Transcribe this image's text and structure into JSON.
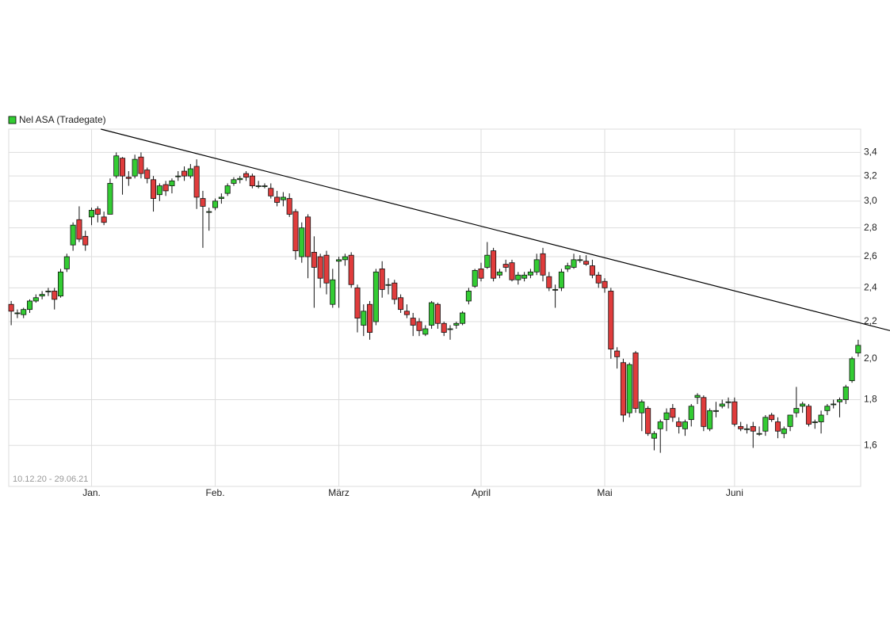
{
  "chart_data": {
    "type": "candlestick",
    "legend_label": "Nel ASA (Tradegate)",
    "annotation": "10.12.20 - 29.06.21",
    "log_scale": true,
    "grid": true,
    "legend_position": "top-left",
    "up_color": "#33cc33",
    "down_color": "#e03c3c",
    "xlim": [
      -0.4,
      137.4
    ],
    "xticks": [
      {
        "value": 13,
        "label": "Jan."
      },
      {
        "value": 33,
        "label": "Feb."
      },
      {
        "value": 53,
        "label": "März"
      },
      {
        "value": 76,
        "label": "April"
      },
      {
        "value": 96,
        "label": "Mai"
      },
      {
        "value": 117,
        "label": "Juni"
      }
    ],
    "ylim": [
      1.44,
      3.61
    ],
    "yticks": [
      {
        "value": 1.6,
        "label": "1,6"
      },
      {
        "value": 1.8,
        "label": "1,8"
      },
      {
        "value": 2.0,
        "label": "2,0"
      },
      {
        "value": 2.2,
        "label": "2,2"
      },
      {
        "value": 2.4,
        "label": "2,4"
      },
      {
        "value": 2.6,
        "label": "2,6"
      },
      {
        "value": 2.8,
        "label": "2,8"
      },
      {
        "value": 3.0,
        "label": "3,0"
      },
      {
        "value": 3.2,
        "label": "3,2"
      },
      {
        "value": 3.4,
        "label": "3,4"
      }
    ],
    "trendline": {
      "x": [
        14.5,
        142.2
      ],
      "y": [
        3.61,
        2.15
      ]
    },
    "open": [
      2.3,
      2.25,
      2.24,
      2.27,
      2.32,
      2.35,
      2.38,
      2.38,
      2.35,
      2.52,
      2.68,
      2.86,
      2.74,
      2.88,
      2.94,
      2.88,
      2.9,
      3.2,
      3.35,
      3.19,
      3.2,
      3.36,
      3.25,
      3.17,
      3.05,
      3.13,
      3.12,
      3.2,
      3.24,
      3.2,
      3.28,
      3.02,
      2.92,
      2.95,
      3.02,
      3.06,
      3.14,
      3.17,
      3.22,
      3.2,
      3.12,
      3.12,
      3.1,
      3.03,
      3.01,
      3.02,
      2.92,
      2.6,
      2.88,
      2.63,
      2.6,
      2.61,
      2.3,
      2.57,
      2.58,
      2.61,
      2.4,
      2.18,
      2.3,
      2.2,
      2.52,
      2.42,
      2.43,
      2.34,
      2.26,
      2.22,
      2.2,
      2.13,
      2.18,
      2.3,
      2.19,
      2.16,
      2.18,
      2.19,
      2.32,
      2.41,
      2.52,
      2.53,
      2.64,
      2.48,
      2.55,
      2.56,
      2.45,
      2.46,
      2.48,
      2.5,
      2.62,
      2.47,
      2.39,
      2.4,
      2.52,
      2.53,
      2.58,
      2.57,
      2.54,
      2.48,
      2.44,
      2.38,
      2.04,
      1.98,
      1.74,
      2.03,
      1.74,
      1.76,
      1.63,
      1.67,
      1.71,
      1.76,
      1.7,
      1.67,
      1.71,
      1.81,
      1.81,
      1.67,
      1.75,
      1.77,
      1.79,
      1.79,
      1.68,
      1.67,
      1.68,
      1.65,
      1.66,
      1.73,
      1.7,
      1.65,
      1.68,
      1.74,
      1.77,
      1.77,
      1.7,
      1.7,
      1.75,
      1.78,
      1.79,
      1.8,
      1.89,
      2.03
    ],
    "high": [
      2.32,
      2.27,
      2.28,
      2.33,
      2.36,
      2.38,
      2.4,
      2.4,
      2.52,
      2.62,
      2.84,
      2.96,
      2.78,
      2.95,
      2.96,
      2.92,
      3.18,
      3.4,
      3.36,
      3.24,
      3.38,
      3.4,
      3.27,
      3.2,
      3.14,
      3.16,
      3.18,
      3.24,
      3.28,
      3.3,
      3.34,
      3.08,
      2.95,
      3.02,
      3.06,
      3.14,
      3.19,
      3.2,
      3.24,
      3.22,
      3.16,
      3.14,
      3.14,
      3.08,
      3.07,
      3.06,
      2.94,
      2.84,
      2.9,
      2.74,
      2.62,
      2.64,
      2.52,
      2.6,
      2.62,
      2.63,
      2.42,
      2.3,
      2.32,
      2.52,
      2.57,
      2.46,
      2.45,
      2.36,
      2.3,
      2.25,
      2.22,
      2.18,
      2.32,
      2.31,
      2.2,
      2.18,
      2.2,
      2.26,
      2.4,
      2.52,
      2.56,
      2.7,
      2.66,
      2.52,
      2.58,
      2.58,
      2.5,
      2.5,
      2.52,
      2.62,
      2.66,
      2.5,
      2.42,
      2.52,
      2.56,
      2.62,
      2.61,
      2.61,
      2.58,
      2.5,
      2.46,
      2.4,
      2.06,
      2.0,
      1.98,
      2.04,
      1.8,
      1.77,
      1.66,
      1.71,
      1.76,
      1.78,
      1.72,
      1.71,
      1.78,
      1.83,
      1.82,
      1.76,
      1.79,
      1.8,
      1.81,
      1.81,
      1.7,
      1.69,
      1.7,
      1.68,
      1.73,
      1.74,
      1.72,
      1.68,
      1.73,
      1.86,
      1.79,
      1.78,
      1.71,
      1.75,
      1.78,
      1.8,
      1.81,
      1.87,
      2.01,
      2.1
    ],
    "low": [
      2.18,
      2.22,
      2.22,
      2.25,
      2.31,
      2.33,
      2.35,
      2.27,
      2.34,
      2.5,
      2.64,
      2.7,
      2.64,
      2.82,
      2.84,
      2.82,
      2.9,
      3.18,
      3.05,
      3.12,
      3.18,
      3.18,
      3.14,
      2.92,
      3.0,
      3.04,
      3.06,
      3.16,
      3.16,
      3.18,
      2.94,
      2.66,
      2.78,
      2.93,
      2.98,
      3.04,
      3.12,
      3.14,
      3.16,
      3.1,
      3.1,
      3.1,
      3.02,
      2.96,
      2.96,
      2.88,
      2.58,
      2.56,
      2.46,
      2.28,
      2.4,
      2.36,
      2.28,
      2.28,
      2.54,
      2.4,
      2.14,
      2.12,
      2.1,
      2.18,
      2.34,
      2.36,
      2.3,
      2.25,
      2.22,
      2.12,
      2.12,
      2.12,
      2.16,
      2.16,
      2.12,
      2.1,
      2.16,
      2.18,
      2.3,
      2.4,
      2.44,
      2.52,
      2.44,
      2.46,
      2.5,
      2.44,
      2.42,
      2.44,
      2.46,
      2.48,
      2.44,
      2.38,
      2.28,
      2.38,
      2.5,
      2.52,
      2.56,
      2.54,
      2.46,
      2.4,
      2.37,
      2.0,
      1.95,
      1.7,
      1.72,
      1.74,
      1.66,
      1.64,
      1.58,
      1.57,
      1.66,
      1.7,
      1.65,
      1.64,
      1.68,
      1.78,
      1.66,
      1.66,
      1.72,
      1.76,
      1.76,
      1.68,
      1.66,
      1.65,
      1.59,
      1.64,
      1.64,
      1.7,
      1.63,
      1.63,
      1.66,
      1.72,
      1.74,
      1.68,
      1.67,
      1.65,
      1.73,
      1.76,
      1.72,
      1.78,
      1.88,
      2.01
    ],
    "close": [
      2.26,
      2.25,
      2.27,
      2.32,
      2.34,
      2.36,
      2.38,
      2.33,
      2.5,
      2.6,
      2.82,
      2.72,
      2.68,
      2.93,
      2.9,
      2.84,
      3.14,
      3.37,
      3.2,
      3.18,
      3.34,
      3.22,
      3.18,
      3.02,
      3.12,
      3.08,
      3.16,
      3.2,
      3.2,
      3.26,
      3.03,
      2.96,
      2.92,
      3.0,
      3.03,
      3.12,
      3.17,
      3.18,
      3.19,
      3.12,
      3.12,
      3.12,
      3.04,
      2.99,
      3.03,
      2.9,
      2.64,
      2.8,
      2.6,
      2.53,
      2.46,
      2.43,
      2.45,
      2.58,
      2.6,
      2.42,
      2.22,
      2.26,
      2.14,
      2.5,
      2.39,
      2.42,
      2.33,
      2.27,
      2.24,
      2.18,
      2.15,
      2.16,
      2.31,
      2.19,
      2.14,
      2.16,
      2.19,
      2.25,
      2.38,
      2.51,
      2.46,
      2.61,
      2.46,
      2.5,
      2.53,
      2.45,
      2.48,
      2.48,
      2.5,
      2.58,
      2.48,
      2.4,
      2.39,
      2.5,
      2.54,
      2.58,
      2.58,
      2.55,
      2.48,
      2.43,
      2.4,
      2.05,
      2.01,
      1.73,
      1.97,
      1.76,
      1.79,
      1.65,
      1.65,
      1.7,
      1.74,
      1.72,
      1.68,
      1.7,
      1.77,
      1.82,
      1.68,
      1.75,
      1.75,
      1.78,
      1.79,
      1.69,
      1.67,
      1.67,
      1.66,
      1.65,
      1.72,
      1.71,
      1.66,
      1.67,
      1.73,
      1.76,
      1.78,
      1.69,
      1.7,
      1.73,
      1.77,
      1.78,
      1.8,
      1.86,
      2.0,
      2.07
    ]
  }
}
